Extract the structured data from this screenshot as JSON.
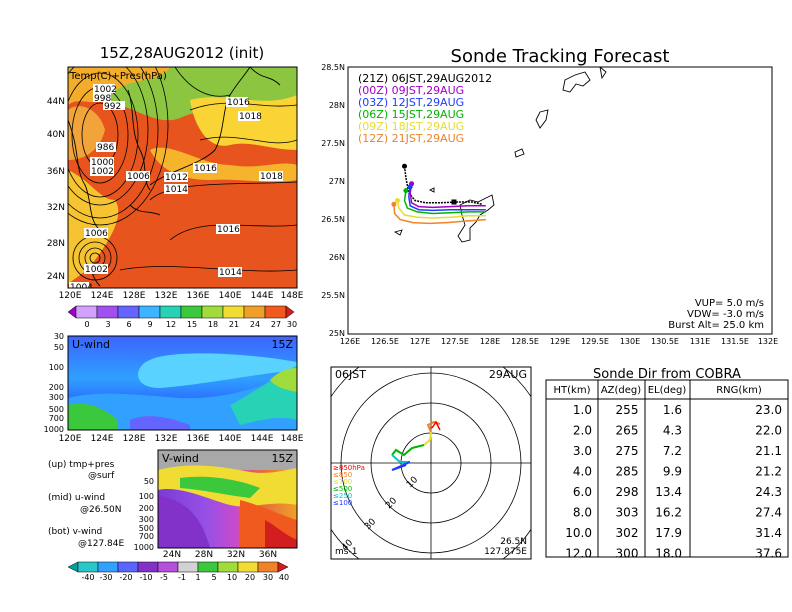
{
  "map_panel": {
    "title": "15Z,28AUG2012 (init)",
    "label": "Temp(C)+Pres(hPa)",
    "lat_ticks": [
      "44N",
      "40N",
      "36N",
      "32N",
      "28N",
      "24N"
    ],
    "lon_ticks": [
      "120E",
      "124E",
      "128E",
      "132E",
      "136E",
      "140E",
      "144E",
      "148E"
    ],
    "colorbar_ticks": [
      "0",
      "3",
      "6",
      "9",
      "12",
      "15",
      "18",
      "21",
      "24",
      "27",
      "30"
    ],
    "contour_labels": [
      "1004",
      "1002",
      "998",
      "992",
      "1016",
      "1018",
      "986",
      "1000",
      "1002",
      "1006",
      "1012",
      "1014",
      "1016",
      "1018",
      "1006",
      "1016",
      "1002",
      "1014",
      "1004"
    ]
  },
  "u_panel": {
    "label": "U-wind",
    "time": "15Z",
    "y_ticks": [
      "30",
      "50",
      "100",
      "200",
      "300",
      "500",
      "700",
      "1000"
    ],
    "x_ticks": [
      "120E",
      "124E",
      "128E",
      "132E",
      "136E",
      "140E",
      "144E",
      "148E"
    ]
  },
  "v_panel": {
    "label": "V-wind",
    "time": "15Z",
    "y_ticks": [
      "50",
      "100",
      "200",
      "300",
      "500",
      "700",
      "1000"
    ],
    "x_ticks": [
      "24N",
      "28N",
      "32N",
      "36N"
    ],
    "colorbar_ticks": [
      "-40",
      "-30",
      "-20",
      "-10",
      "-5",
      "-1",
      "1",
      "5",
      "10",
      "20",
      "30",
      "40"
    ]
  },
  "legend_notes": {
    "up": "(up) tmp+pres",
    "up_sub": "@surf",
    "mid": "(mid) u-wind",
    "mid_sub": "@26.50N",
    "bot": "(bot) v-wind",
    "bot_sub": "@127.84E"
  },
  "tracking": {
    "title": "Sonde Tracking Forecast",
    "y_ticks": [
      "28.5N",
      "28N",
      "27.5N",
      "27N",
      "26.5N",
      "26N",
      "25.5N",
      "25N"
    ],
    "x_ticks": [
      "126E",
      "126.5E",
      "127E",
      "127.5E",
      "128E",
      "128.5E",
      "129E",
      "129.5E",
      "130E",
      "130.5E",
      "131E",
      "131.5E",
      "132E"
    ],
    "legend": [
      {
        "tag": "(21Z)",
        "time": "06JST,29AUG2012",
        "color": "#000000"
      },
      {
        "tag": "(00Z)",
        "time": "09JST,29AUG",
        "color": "#a000c8"
      },
      {
        "tag": "(03Z)",
        "time": "12JST,29AUG",
        "color": "#1e3cff"
      },
      {
        "tag": "(06Z)",
        "time": "15JST,29AUG",
        "color": "#00b400"
      },
      {
        "tag": "(09Z)",
        "time": "18JST,29AUG",
        "color": "#e6dc32"
      },
      {
        "tag": "(12Z)",
        "time": "21JST,29AUG",
        "color": "#f08228"
      }
    ],
    "vup": "VUP= 5.0 m/s",
    "vdw": "VDW= -3.0 m/s",
    "burst": "Burst Alt= 25.0 km"
  },
  "hodograph": {
    "time_left": "06JST",
    "time_right": "29AUG",
    "ring_labels": [
      "10",
      "20",
      "30",
      "40"
    ],
    "levels": [
      {
        "label": "≥850hPa",
        "color": "#ff0000"
      },
      {
        "label": "≤850",
        "color": "#f08228"
      },
      {
        "label": "≤700",
        "color": "#e6dc32"
      },
      {
        "label": "≤500",
        "color": "#00b400"
      },
      {
        "label": "≤250",
        "color": "#00c8c8"
      },
      {
        "label": "≤100",
        "color": "#1e3cff"
      }
    ],
    "unit": "ms-1",
    "lat": "26.5N",
    "lon": "127.875E"
  },
  "sonde_table": {
    "title": "Sonde Dir from COBRA",
    "headers": [
      "HT(km)",
      "AZ(deg)",
      "EL(deg)",
      "RNG(km)"
    ],
    "rows": [
      [
        "1.0",
        "255",
        "1.6",
        "23.0"
      ],
      [
        "2.0",
        "265",
        "4.3",
        "22.0"
      ],
      [
        "3.0",
        "275",
        "7.2",
        "21.1"
      ],
      [
        "4.0",
        "285",
        "9.9",
        "21.2"
      ],
      [
        "6.0",
        "298",
        "13.4",
        "24.3"
      ],
      [
        "8.0",
        "303",
        "16.2",
        "27.4"
      ],
      [
        "10.0",
        "302",
        "17.9",
        "31.4"
      ],
      [
        "12.0",
        "300",
        "18.0",
        "37.6"
      ]
    ]
  },
  "chart_data": [
    {
      "type": "line",
      "title": "Sonde Tracking Forecast",
      "xlim": [
        126,
        132
      ],
      "ylim": [
        25,
        28.5
      ],
      "series": [
        {
          "name": "(21Z) 06JST,29AUG2012",
          "x": [
            126.8,
            126.82,
            126.86,
            126.95,
            127.1,
            127.3,
            127.55,
            127.75,
            127.9
          ],
          "y": [
            27.2,
            27.05,
            26.85,
            26.75,
            26.72,
            26.72,
            26.73,
            26.73,
            26.7
          ]
        },
        {
          "name": "(00Z) 09JST,29AUG",
          "x": [
            126.9,
            126.88,
            126.9,
            127.0,
            127.2,
            127.45,
            127.7,
            127.95
          ],
          "y": [
            26.97,
            26.85,
            26.72,
            26.67,
            26.66,
            26.67,
            26.68,
            26.68
          ]
        },
        {
          "name": "(03Z) 12JST,29AUG",
          "x": [
            126.88,
            126.86,
            126.88,
            127.0,
            127.2,
            127.45,
            127.7,
            127.95
          ],
          "y": [
            26.93,
            26.8,
            26.68,
            26.63,
            26.62,
            26.63,
            26.63,
            26.63
          ]
        },
        {
          "name": "(06Z) 15JST,29AUG",
          "x": [
            126.82,
            126.8,
            126.84,
            126.98,
            127.2,
            127.45,
            127.7,
            127.95
          ],
          "y": [
            26.88,
            26.75,
            26.65,
            26.6,
            26.58,
            26.59,
            26.6,
            26.6
          ]
        },
        {
          "name": "(09Z) 18JST,29AUG",
          "x": [
            126.7,
            126.72,
            126.8,
            126.98,
            127.2,
            127.45,
            127.7,
            127.95
          ],
          "y": [
            26.75,
            26.65,
            26.56,
            26.53,
            26.52,
            26.53,
            26.55,
            26.55
          ]
        },
        {
          "name": "(12Z) 21JST,29AUG",
          "x": [
            126.65,
            126.66,
            126.74,
            126.92,
            127.15,
            127.4,
            127.65,
            127.95
          ],
          "y": [
            26.7,
            26.58,
            26.5,
            26.46,
            26.45,
            26.46,
            26.48,
            26.5
          ]
        }
      ]
    },
    {
      "type": "table",
      "title": "Sonde Dir from COBRA",
      "columns": [
        "HT(km)",
        "AZ(deg)",
        "EL(deg)",
        "RNG(km)"
      ],
      "rows": [
        [
          1.0,
          255,
          1.6,
          23.0
        ],
        [
          2.0,
          265,
          4.3,
          22.0
        ],
        [
          3.0,
          275,
          7.2,
          21.1
        ],
        [
          4.0,
          285,
          9.9,
          21.2
        ],
        [
          6.0,
          298,
          13.4,
          24.3
        ],
        [
          8.0,
          303,
          16.2,
          27.4
        ],
        [
          10.0,
          302,
          17.9,
          31.4
        ],
        [
          12.0,
          300,
          18.0,
          37.6
        ]
      ]
    }
  ]
}
